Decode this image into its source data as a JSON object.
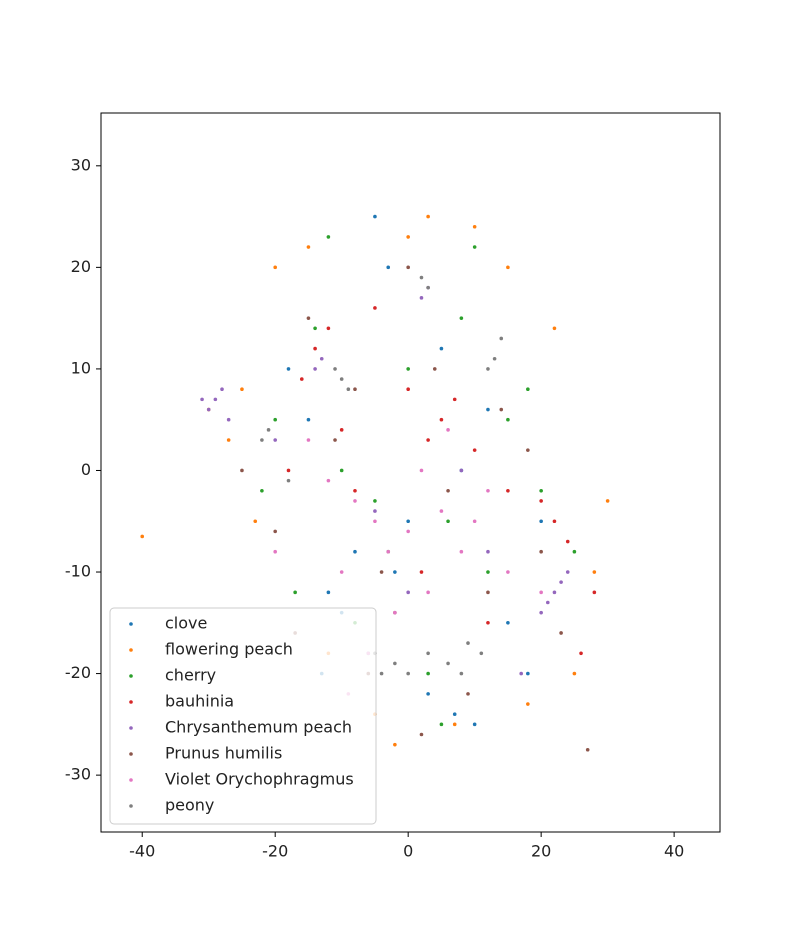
{
  "chart_data": {
    "type": "scatter",
    "xlim": [
      -46.2,
      46.9
    ],
    "ylim": [
      -35.6,
      35.2
    ],
    "xticks": [
      -40,
      -20,
      0,
      20,
      40
    ],
    "yticks": [
      -30,
      -20,
      -10,
      0,
      10,
      20,
      30
    ],
    "legend": "lower left",
    "series": [
      {
        "name": "clove",
        "color": "#1f77b4",
        "x": [
          -5,
          -12,
          -8,
          3,
          10,
          -15,
          -3,
          8,
          15,
          -18,
          0,
          -10,
          5,
          20,
          -6,
          12,
          -2,
          18,
          -13,
          7
        ],
        "values": [
          25,
          -12,
          -8,
          -22,
          -25,
          5,
          20,
          0,
          -15,
          10,
          -5,
          -14,
          12,
          -5,
          -18,
          6,
          -10,
          -20,
          -20,
          -24
        ]
      },
      {
        "name": "flowering peach",
        "color": "#ff7f0e",
        "x": [
          -40,
          -20,
          -25,
          3,
          -2,
          25,
          28,
          30,
          -30,
          -15,
          10,
          -5,
          22,
          -23,
          7,
          18,
          -12,
          0,
          15,
          -27
        ],
        "values": [
          -6.5,
          20,
          8,
          25,
          -27,
          -20,
          -10,
          -3,
          6,
          22,
          24,
          -24,
          14,
          -5,
          -25,
          -23,
          -18,
          23,
          20,
          3
        ]
      },
      {
        "name": "cherry",
        "color": "#2ca02c",
        "x": [
          -12,
          -20,
          -5,
          5,
          12,
          20,
          -17,
          0,
          8,
          -8,
          15,
          -3,
          -14,
          25,
          3,
          -10,
          10,
          -22,
          6,
          18
        ],
        "values": [
          23,
          5,
          -3,
          -25,
          -10,
          -2,
          -12,
          10,
          15,
          -15,
          5,
          -8,
          14,
          -8,
          -20,
          0,
          22,
          -2,
          -5,
          8
        ]
      },
      {
        "name": "bauhinia",
        "color": "#d62728",
        "x": [
          -14,
          -12,
          -16,
          5,
          3,
          7,
          22,
          24,
          20,
          -5,
          0,
          10,
          15,
          -8,
          28,
          -18,
          2,
          12,
          -10,
          26
        ],
        "values": [
          12,
          14,
          9,
          5,
          3,
          7,
          -5,
          -7,
          -3,
          16,
          8,
          2,
          -2,
          -2,
          -12,
          0,
          -10,
          -15,
          4,
          -18
        ]
      },
      {
        "name": "Chrysanthemum peach",
        "color": "#9467bd",
        "x": [
          -29,
          -30,
          -28,
          -27,
          22,
          21,
          23,
          20,
          -14,
          -13,
          2,
          3,
          -31,
          24,
          -5,
          8,
          12,
          -20,
          0,
          17
        ],
        "values": [
          7,
          6,
          8,
          5,
          -12,
          -13,
          -11,
          -14,
          10,
          11,
          17,
          18,
          7,
          -10,
          -4,
          0,
          -8,
          3,
          -12,
          -20
        ]
      },
      {
        "name": "Prunus humilis",
        "color": "#8c564b",
        "x": [
          27,
          -15,
          -6,
          4,
          12,
          -20,
          18,
          -2,
          9,
          -11,
          23,
          0,
          -25,
          14,
          -8,
          6,
          -17,
          20,
          2,
          -4
        ],
        "values": [
          -27.5,
          15,
          -20,
          10,
          -12,
          -6,
          2,
          -14,
          -22,
          3,
          -16,
          20,
          0,
          6,
          8,
          -2,
          -16,
          -8,
          -26,
          -10
        ]
      },
      {
        "name": "Violet Orychophragmus",
        "color": "#e377c2",
        "x": [
          -5,
          -3,
          -8,
          -10,
          0,
          5,
          10,
          8,
          -12,
          -15,
          -2,
          3,
          12,
          15,
          -20,
          -6,
          2,
          20,
          -9,
          6
        ],
        "values": [
          -5,
          -8,
          -3,
          -10,
          -6,
          -4,
          -5,
          -8,
          -1,
          3,
          -14,
          -12,
          -2,
          -10,
          -8,
          -18,
          0,
          -12,
          -22,
          4
        ]
      },
      {
        "name": "peony",
        "color": "#7f7f7f",
        "x": [
          -10,
          -9,
          -11,
          13,
          12,
          14,
          -2,
          0,
          3,
          6,
          9,
          -22,
          -21,
          3,
          2,
          -5,
          -4,
          8,
          -18,
          11
        ],
        "values": [
          9,
          8,
          10,
          11,
          10,
          13,
          -19,
          -20,
          -18,
          -19,
          -17,
          3,
          4,
          18,
          19,
          -18,
          -20,
          -20,
          -1,
          -18
        ]
      }
    ]
  }
}
